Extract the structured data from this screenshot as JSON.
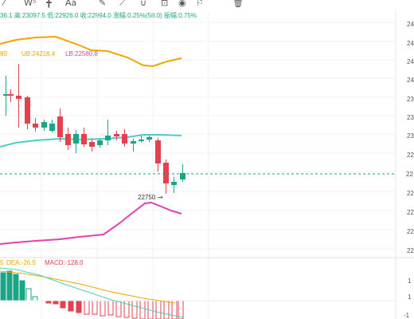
{
  "toolbar": {
    "icons": [
      "cursor-icon",
      "wave-icon",
      "crosshair-icon",
      "text-icon",
      "pencil-icon",
      "measure-icon",
      "magnet-icon",
      "lock-icon",
      "eye-icon",
      "bookmark-icon",
      "trash-icon"
    ],
    "wave_glyph": "W⁵",
    "text_glyph": "Aa"
  },
  "stats": {
    "open_frag": "36.1",
    "high": "高:23097.5",
    "low": "低:22926.0",
    "close": "收:22994.0",
    "change": "涨幅:0.25%(58.0)",
    "amplitude": "振幅:0.75%"
  },
  "boll_legend": {
    "mb_frag": "80",
    "ub": "UB:24216.4",
    "lb": "LB:22580.8"
  },
  "price_axis": {
    "labels": [
      "24",
      "24",
      "24",
      "24",
      "23",
      "23",
      "23",
      "22",
      "22",
      "22",
      "22",
      "22"
    ],
    "current": "22"
  },
  "annotation": {
    "low_marker": "22750"
  },
  "macd_legend": {
    "dif_frag": "5",
    "dea": "DEA:-26.5",
    "macd": "MACD:-128.0"
  },
  "macd_axis": {
    "labels": [
      "1",
      "1",
      "-1"
    ]
  },
  "colors": {
    "up": "#1aa586",
    "down": "#e2424d",
    "ub_line": "#f0a500",
    "mb_line": "#4ecdc4",
    "lb_line": "#e040b0",
    "dea_line": "#f0a500",
    "dif_line": "#4ecdc4"
  }
}
